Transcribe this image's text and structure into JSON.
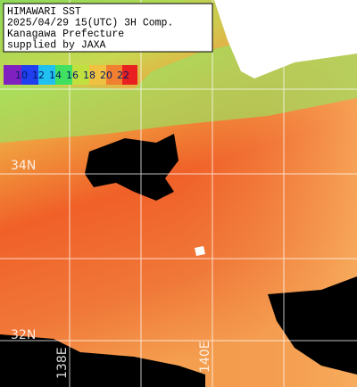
{
  "header": {
    "lines": [
      "HIMAWARI SST",
      "2025/04/29 15(UTC) 3H Comp.",
      "Kanagawa Prefecture",
      "supplied by JAXA"
    ]
  },
  "legend": {
    "labels": [
      10,
      12,
      14,
      16,
      18,
      20,
      22
    ]
  },
  "grid_labels": {
    "lat_north": "34N",
    "lat_south": "32N",
    "lon_west": "138E",
    "lon_east": "140E"
  }
}
